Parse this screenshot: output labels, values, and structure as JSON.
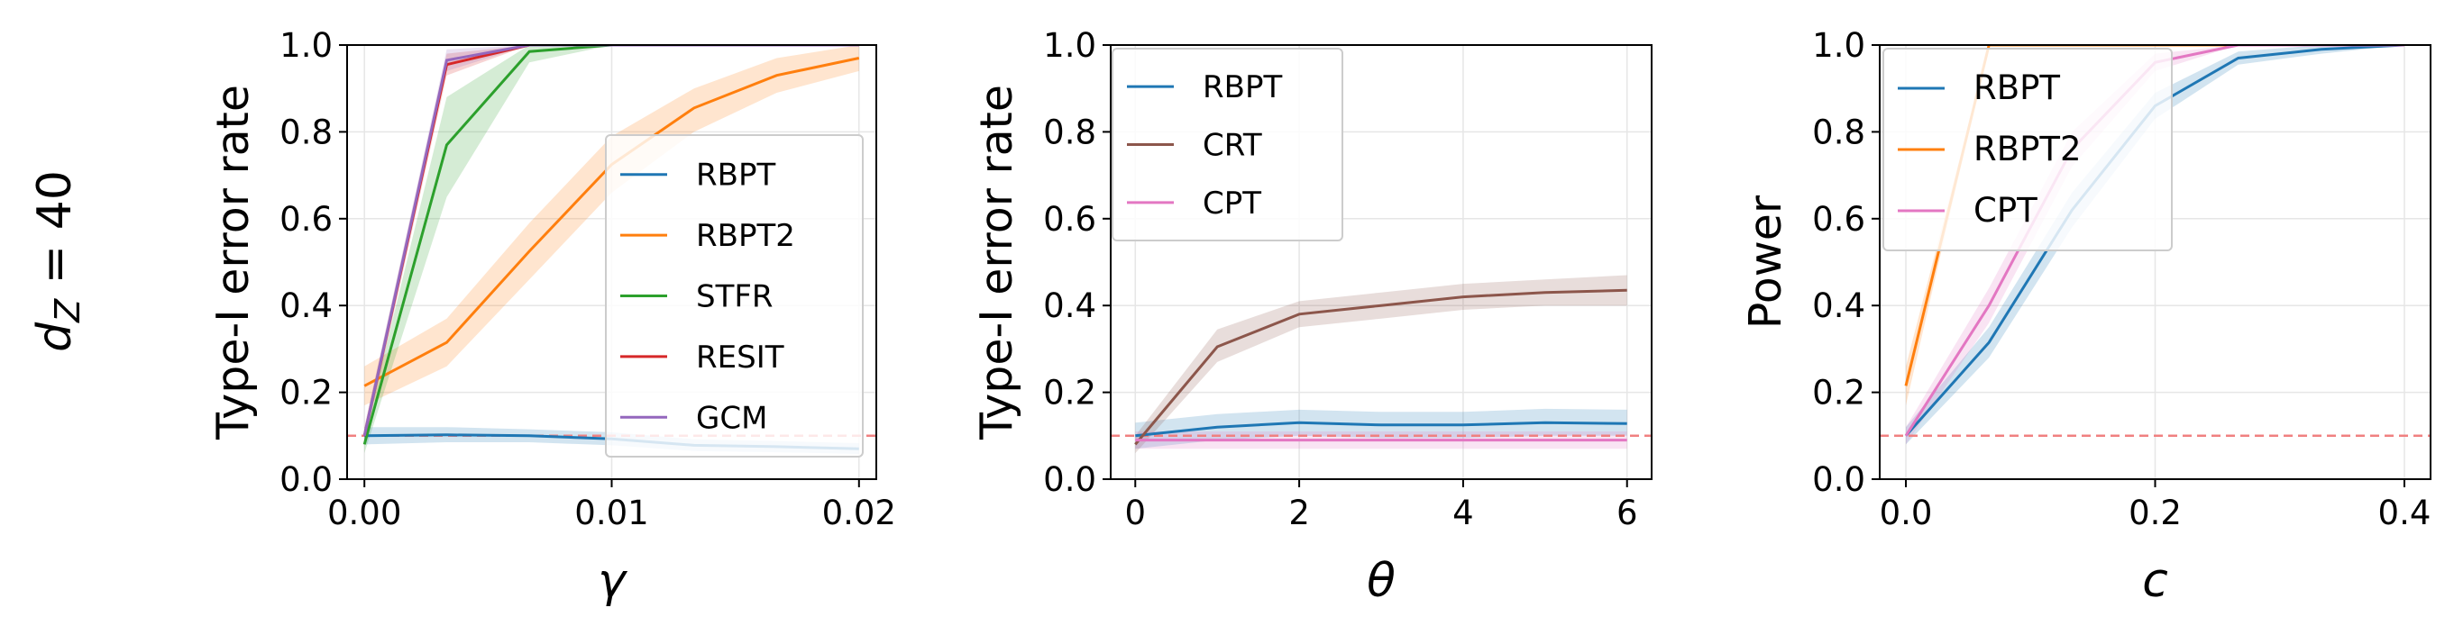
{
  "row_label": "d_Z = 40",
  "reference_line": {
    "y": 0.1,
    "color": "#f08080"
  },
  "colors": {
    "RBPT": "#1f77b4",
    "RBPT2": "#ff7f0e",
    "STFR": "#2ca02c",
    "RESIT": "#d62728",
    "GCM": "#9467bd",
    "CRT": "#8c564b",
    "CPT": "#e377c2"
  },
  "chart_data": [
    {
      "type": "line",
      "xlabel": "γ",
      "ylabel": "Type-I error rate",
      "xlim": [
        -0.0007,
        0.0207
      ],
      "ylim": [
        0.0,
        1.0
      ],
      "xticks": [
        0.0,
        0.01,
        0.02
      ],
      "xtick_labels": [
        "0.00",
        "0.01",
        "0.02"
      ],
      "yticks": [
        0.0,
        0.2,
        0.4,
        0.6,
        0.8,
        1.0
      ],
      "ytick_labels": [
        "0.0",
        "0.2",
        "0.4",
        "0.6",
        "0.8",
        "1.0"
      ],
      "grid": true,
      "legend_position": "lower-right",
      "series": [
        {
          "name": "RBPT",
          "x": [
            0,
            0.00333,
            0.00667,
            0.01,
            0.01333,
            0.01667,
            0.02
          ],
          "y": [
            0.1,
            0.102,
            0.1,
            0.093,
            0.078,
            0.075,
            0.07
          ],
          "lower": [
            0.08,
            0.085,
            0.085,
            0.078,
            0.065,
            0.062,
            0.058
          ],
          "upper": [
            0.12,
            0.12,
            0.115,
            0.108,
            0.092,
            0.088,
            0.083
          ]
        },
        {
          "name": "RBPT2",
          "x": [
            0,
            0.00333,
            0.00667,
            0.01,
            0.01333,
            0.01667,
            0.02
          ],
          "y": [
            0.215,
            0.315,
            0.525,
            0.725,
            0.855,
            0.93,
            0.97
          ],
          "lower": [
            0.17,
            0.26,
            0.46,
            0.66,
            0.8,
            0.89,
            0.94
          ],
          "upper": [
            0.26,
            0.37,
            0.59,
            0.79,
            0.9,
            0.97,
            1.0
          ]
        },
        {
          "name": "STFR",
          "x": [
            0,
            0.00333,
            0.00667,
            0.01,
            0.01333,
            0.01667,
            0.02
          ],
          "y": [
            0.08,
            0.77,
            0.985,
            1.0,
            1.0,
            1.0,
            1.0
          ],
          "lower": [
            0.06,
            0.65,
            0.96,
            1.0,
            1.0,
            1.0,
            1.0
          ],
          "upper": [
            0.1,
            0.88,
            1.0,
            1.0,
            1.0,
            1.0,
            1.0
          ]
        },
        {
          "name": "RESIT",
          "x": [
            0,
            0.00333,
            0.00667,
            0.01,
            0.01333,
            0.01667,
            0.02
          ],
          "y": [
            0.1,
            0.955,
            1.0,
            1.0,
            1.0,
            1.0,
            1.0
          ],
          "lower": [
            0.08,
            0.93,
            1.0,
            1.0,
            1.0,
            1.0,
            1.0
          ],
          "upper": [
            0.12,
            0.98,
            1.0,
            1.0,
            1.0,
            1.0,
            1.0
          ]
        },
        {
          "name": "GCM",
          "x": [
            0,
            0.00333,
            0.00667,
            0.01,
            0.01333,
            0.01667,
            0.02
          ],
          "y": [
            0.1,
            0.965,
            1.0,
            1.0,
            1.0,
            1.0,
            1.0
          ],
          "lower": [
            0.08,
            0.94,
            1.0,
            1.0,
            1.0,
            1.0,
            1.0
          ],
          "upper": [
            0.12,
            0.99,
            1.0,
            1.0,
            1.0,
            1.0,
            1.0
          ]
        }
      ]
    },
    {
      "type": "line",
      "xlabel": "θ",
      "ylabel": "Type-I error rate",
      "xlim": [
        -0.3,
        6.3
      ],
      "ylim": [
        0.0,
        1.0
      ],
      "xticks": [
        0,
        2,
        4,
        6
      ],
      "xtick_labels": [
        "0",
        "2",
        "4",
        "6"
      ],
      "yticks": [
        0.0,
        0.2,
        0.4,
        0.6,
        0.8,
        1.0
      ],
      "ytick_labels": [
        "0.0",
        "0.2",
        "0.4",
        "0.6",
        "0.8",
        "1.0"
      ],
      "grid": true,
      "legend_position": "upper-left",
      "series": [
        {
          "name": "RBPT",
          "x": [
            0,
            1,
            2,
            3,
            4,
            5,
            6
          ],
          "y": [
            0.1,
            0.12,
            0.13,
            0.125,
            0.125,
            0.13,
            0.128
          ],
          "lower": [
            0.07,
            0.09,
            0.1,
            0.095,
            0.095,
            0.1,
            0.1
          ],
          "upper": [
            0.13,
            0.15,
            0.16,
            0.155,
            0.155,
            0.162,
            0.16
          ]
        },
        {
          "name": "CRT",
          "x": [
            0,
            1,
            2,
            3,
            4,
            5,
            6
          ],
          "y": [
            0.08,
            0.305,
            0.38,
            0.4,
            0.42,
            0.43,
            0.435
          ],
          "lower": [
            0.06,
            0.27,
            0.35,
            0.37,
            0.39,
            0.4,
            0.4
          ],
          "upper": [
            0.1,
            0.345,
            0.41,
            0.43,
            0.45,
            0.46,
            0.47
          ]
        },
        {
          "name": "CPT",
          "x": [
            0,
            1,
            2,
            3,
            4,
            5,
            6
          ],
          "y": [
            0.09,
            0.09,
            0.09,
            0.09,
            0.09,
            0.09,
            0.09
          ],
          "lower": [
            0.07,
            0.07,
            0.07,
            0.07,
            0.07,
            0.07,
            0.07
          ],
          "upper": [
            0.11,
            0.11,
            0.11,
            0.11,
            0.11,
            0.11,
            0.11
          ]
        }
      ]
    },
    {
      "type": "line",
      "xlabel": "c",
      "ylabel": "Power",
      "xlim": [
        -0.021,
        0.421
      ],
      "ylim": [
        0.0,
        1.0
      ],
      "xticks": [
        0.0,
        0.2,
        0.4
      ],
      "xtick_labels": [
        "0.0",
        "0.2",
        "0.4"
      ],
      "yticks": [
        0.0,
        0.2,
        0.4,
        0.6,
        0.8,
        1.0
      ],
      "ytick_labels": [
        "0.0",
        "0.2",
        "0.4",
        "0.6",
        "0.8",
        "1.0"
      ],
      "grid": true,
      "legend_position": "upper-left",
      "series": [
        {
          "name": "RBPT",
          "x": [
            0,
            0.0667,
            0.1333,
            0.2,
            0.2667,
            0.3333,
            0.4
          ],
          "y": [
            0.1,
            0.315,
            0.62,
            0.86,
            0.97,
            0.99,
            1.0
          ],
          "lower": [
            0.08,
            0.28,
            0.58,
            0.83,
            0.955,
            0.98,
            1.0
          ],
          "upper": [
            0.12,
            0.35,
            0.66,
            0.89,
            0.985,
            1.0,
            1.0
          ]
        },
        {
          "name": "RBPT2",
          "x": [
            0,
            0.0667,
            0.1333,
            0.2,
            0.2667,
            0.3333,
            0.4
          ],
          "y": [
            0.215,
            1.0,
            1.0,
            1.0,
            1.0,
            1.0,
            1.0
          ],
          "lower": [
            0.17,
            1.0,
            1.0,
            1.0,
            1.0,
            1.0,
            1.0
          ],
          "upper": [
            0.26,
            1.0,
            1.0,
            1.0,
            1.0,
            1.0,
            1.0
          ]
        },
        {
          "name": "CPT",
          "x": [
            0,
            0.0667,
            0.1333,
            0.2,
            0.2667,
            0.3333,
            0.4
          ],
          "y": [
            0.1,
            0.4,
            0.76,
            0.96,
            1.0,
            1.0,
            1.0
          ],
          "lower": [
            0.08,
            0.36,
            0.72,
            0.94,
            1.0,
            1.0,
            1.0
          ],
          "upper": [
            0.12,
            0.44,
            0.8,
            0.98,
            1.0,
            1.0,
            1.0
          ]
        }
      ]
    }
  ]
}
